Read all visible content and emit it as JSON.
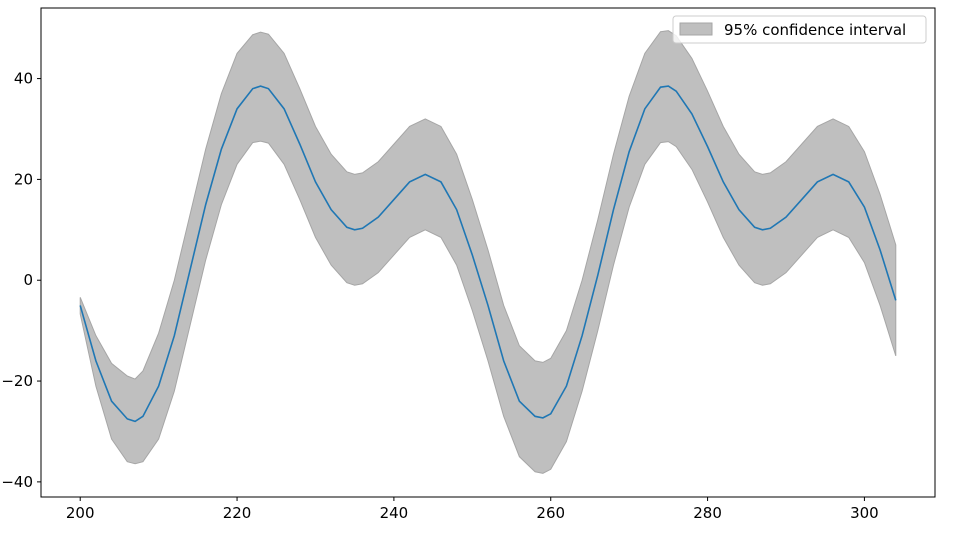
{
  "chart_data": {
    "type": "line",
    "title": "",
    "xlabel": "",
    "ylabel": "",
    "xlim": [
      195,
      309
    ],
    "ylim": [
      -43,
      54
    ],
    "xticks": [
      200,
      220,
      240,
      260,
      280,
      300
    ],
    "yticks": [
      -40,
      -20,
      0,
      20,
      40
    ],
    "grid": false,
    "legend": {
      "placement": "top-right",
      "entries": [
        "95% confidence interval"
      ]
    },
    "colors": {
      "line": "#1f77b4",
      "band": "#bfbfbf",
      "band_edge": "#a6a6a6"
    },
    "x": [
      200,
      202,
      204,
      206,
      207,
      208,
      210,
      212,
      214,
      216,
      218,
      220,
      222,
      223,
      224,
      226,
      228,
      230,
      232,
      234,
      235,
      236,
      238,
      240,
      242,
      244,
      246,
      248,
      250,
      252,
      254,
      256,
      258,
      259,
      260,
      262,
      264,
      266,
      268,
      270,
      272,
      274,
      275,
      276,
      278,
      280,
      282,
      284,
      286,
      287,
      288,
      290,
      292,
      294,
      296,
      298,
      300,
      302,
      304
    ],
    "mean": [
      -5,
      -16,
      -24,
      -27.5,
      -28,
      -27,
      -21,
      -11,
      2,
      15,
      26,
      34,
      38,
      38.5,
      38,
      34,
      27,
      19.5,
      14,
      10.5,
      10,
      10.3,
      12.5,
      16,
      19.5,
      21,
      19.5,
      14,
      5,
      -5,
      -16,
      -24,
      -27,
      -27.3,
      -26.5,
      -21,
      -11,
      1,
      14,
      25.5,
      34,
      38.3,
      38.5,
      37.5,
      33,
      26.5,
      19.5,
      14,
      10.5,
      10,
      10.3,
      12.5,
      16,
      19.5,
      21,
      19.5,
      14.5,
      6,
      -4
    ],
    "lower": [
      -6.7,
      -21,
      -31.5,
      -36,
      -36.4,
      -36,
      -31.5,
      -22,
      -9,
      4,
      15,
      23,
      27.3,
      27.6,
      27.2,
      23,
      16,
      8.5,
      3,
      -0.5,
      -1,
      -0.7,
      1.5,
      5,
      8.5,
      10,
      8.5,
      3,
      -6,
      -16,
      -27,
      -35,
      -38,
      -38.3,
      -37.5,
      -32,
      -22,
      -10,
      3,
      14.5,
      23,
      27.3,
      27.5,
      26.5,
      22,
      15.5,
      8.5,
      3,
      -0.5,
      -1,
      -0.7,
      1.5,
      5,
      8.5,
      10,
      8.5,
      3.5,
      -5,
      -15
    ],
    "upper": [
      -3.4,
      -11,
      -16.5,
      -19,
      -19.6,
      -18,
      -10.5,
      0,
      13,
      26,
      37,
      45,
      48.7,
      49.2,
      48.8,
      45,
      38,
      30.5,
      25,
      21.5,
      21,
      21.3,
      23.5,
      27,
      30.5,
      32,
      30.5,
      25,
      16,
      6,
      -5,
      -13,
      -16,
      -16.3,
      -15.5,
      -10,
      0,
      12,
      25,
      36.5,
      45,
      49.3,
      49.5,
      48.5,
      44,
      37.5,
      30.5,
      25,
      21.5,
      21,
      21.3,
      23.5,
      27,
      30.5,
      32,
      30.5,
      25.5,
      17,
      7
    ]
  }
}
